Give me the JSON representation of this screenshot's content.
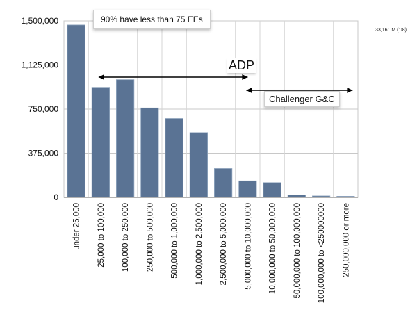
{
  "chart_data": {
    "type": "bar",
    "categories": [
      "under 25,000",
      "25,000 to 100,000",
      "100,000 to 250,000",
      "250,000 to 500,000",
      "500,000 to 1,000,000",
      "1,000,000 to 2,500,000",
      "2,500,000 to 5,000,000",
      "5,000,000 to 10,000,000",
      "10,000,000 to 50,000,000",
      "50,000,000 to 100,000,000",
      "100,000,000 to <250000000",
      "250,000,000 or more"
    ],
    "values": [
      1465000,
      935000,
      1000000,
      760000,
      670000,
      550000,
      245000,
      140000,
      125000,
      20000,
      12000,
      9000
    ],
    "yticks": [
      "0",
      "375,000",
      "750,000",
      "1,125,000",
      "1,500,000"
    ],
    "ytick_values": [
      0,
      375000,
      750000,
      1125000,
      1500000
    ],
    "ylim": [
      0,
      1500000
    ],
    "grid": true,
    "bar_color": "#5a7394",
    "annotations": {
      "top_callout": "90% have less than 75 EEs",
      "adp_label": "ADP",
      "challenger_label": "Challenger G&C",
      "adp_range": [
        "25,000 to 100,000",
        "5,000,000 to 10,000,000"
      ],
      "challenger_range": [
        "5,000,000 to 10,000,000",
        "250,000,000 or more"
      ]
    },
    "corner_note": "33,161 M ('08)"
  }
}
